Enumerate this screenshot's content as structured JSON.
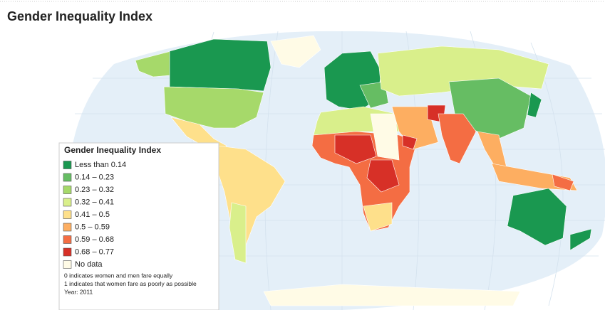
{
  "header": {
    "title": "Gender Inequality Index"
  },
  "legend": {
    "title": "Gender Inequality Index",
    "items": [
      {
        "label": "Less than 0.14",
        "color": "#1a9850"
      },
      {
        "label": "0.14 – 0.23",
        "color": "#66bd63"
      },
      {
        "label": "0.23 – 0.32",
        "color": "#a6d96a"
      },
      {
        "label": "0.32 – 0.41",
        "color": "#d9ef8b"
      },
      {
        "label": "0.41 – 0.5",
        "color": "#fee08b"
      },
      {
        "label": "0.5 – 0.59",
        "color": "#fdae61"
      },
      {
        "label": "0.59 – 0.68",
        "color": "#f46d43"
      },
      {
        "label": "0.68 – 0.77",
        "color": "#d73027"
      },
      {
        "label": "No data",
        "color": "#fffbe6"
      }
    ],
    "notes": [
      "0 indicates women and men fare equally",
      "1 indicates that women fare as poorly as possible",
      "Year: 2011"
    ]
  }
}
